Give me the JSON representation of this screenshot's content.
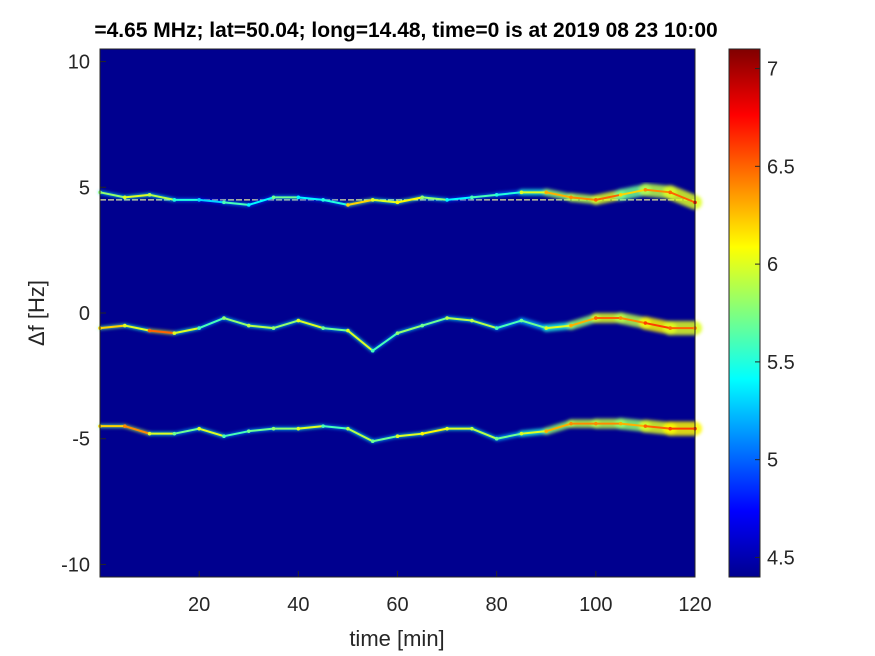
{
  "title": "=4.65 MHz;  lat=50.04; long=14.48, time=0 is at 2019 08 23 10:00",
  "chart_data": {
    "type": "heatmap",
    "title": "=4.65 MHz;  lat=50.04; long=14.48, time=0 is at 2019 08 23 10:00",
    "xlabel": "time [min]",
    "ylabel": "Δf [Hz]",
    "xlim": [
      0,
      120
    ],
    "ylim": [
      -10.5,
      10.5
    ],
    "xticks": [
      20,
      40,
      60,
      80,
      100,
      120
    ],
    "xtick_labels": [
      "20",
      "40",
      "60",
      "80",
      "100",
      "120"
    ],
    "yticks": [
      10,
      5,
      0,
      -5,
      -10
    ],
    "ytick_labels": [
      "10",
      "5",
      "0",
      "-5",
      "-10"
    ],
    "grid": false,
    "colormap": "jet",
    "background_color": "#00008f",
    "colorbar": {
      "range": [
        4.4,
        7.1
      ],
      "ticks": [
        7,
        6.5,
        6,
        5.5,
        5,
        4.5
      ],
      "tick_labels": [
        "7",
        "6.5",
        "6",
        "5.5",
        "5",
        "4.5"
      ]
    },
    "series": [
      {
        "reference_line": 4.5,
        "t": [
          0,
          5,
          10,
          15,
          20,
          25,
          30,
          35,
          40,
          45,
          50,
          55,
          60,
          65,
          70,
          75,
          80,
          85,
          90,
          95,
          100,
          105,
          110,
          115,
          120
        ],
        "df": [
          4.8,
          4.6,
          4.7,
          4.5,
          4.5,
          4.4,
          4.3,
          4.6,
          4.6,
          4.5,
          4.3,
          4.5,
          4.4,
          4.6,
          4.5,
          4.6,
          4.7,
          4.8,
          4.8,
          4.6,
          4.5,
          4.7,
          4.9,
          4.8,
          4.4
        ],
        "intensity": [
          5.8,
          6.0,
          5.9,
          5.5,
          5.3,
          5.6,
          5.4,
          5.7,
          5.4,
          5.5,
          6.2,
          6.0,
          6.1,
          5.8,
          5.4,
          5.6,
          5.5,
          6.0,
          6.3,
          6.4,
          6.5,
          6.2,
          6.4,
          6.5,
          6.7
        ]
      },
      {
        "t": [
          0,
          5,
          10,
          15,
          20,
          25,
          30,
          35,
          40,
          45,
          50,
          55,
          60,
          65,
          70,
          75,
          80,
          85,
          90,
          95,
          100,
          105,
          110,
          115,
          120
        ],
        "df": [
          -0.6,
          -0.5,
          -0.7,
          -0.8,
          -0.6,
          -0.2,
          -0.5,
          -0.6,
          -0.3,
          -0.6,
          -0.7,
          -1.5,
          -0.8,
          -0.5,
          -0.2,
          -0.3,
          -0.6,
          -0.3,
          -0.6,
          -0.5,
          -0.2,
          -0.2,
          -0.4,
          -0.6,
          -0.6
        ],
        "intensity": [
          6.2,
          6.0,
          6.5,
          6.0,
          5.6,
          5.8,
          5.9,
          5.8,
          6.0,
          5.7,
          6.0,
          5.6,
          5.8,
          5.7,
          5.9,
          5.9,
          5.6,
          5.7,
          6.0,
          6.3,
          6.5,
          6.4,
          6.6,
          6.5,
          6.4
        ]
      },
      {
        "t": [
          0,
          5,
          10,
          15,
          20,
          25,
          30,
          35,
          40,
          45,
          50,
          55,
          60,
          65,
          70,
          75,
          80,
          85,
          90,
          95,
          100,
          105,
          110,
          115,
          120
        ],
        "df": [
          -4.5,
          -4.5,
          -4.8,
          -4.8,
          -4.6,
          -4.9,
          -4.7,
          -4.6,
          -4.6,
          -4.5,
          -4.6,
          -5.1,
          -4.9,
          -4.8,
          -4.6,
          -4.6,
          -5.0,
          -4.8,
          -4.7,
          -4.4,
          -4.4,
          -4.4,
          -4.5,
          -4.6,
          -4.6
        ],
        "intensity": [
          6.2,
          6.4,
          6.0,
          5.7,
          6.0,
          5.6,
          5.7,
          5.8,
          6.0,
          5.6,
          5.9,
          5.7,
          6.0,
          6.1,
          6.0,
          5.9,
          5.7,
          6.0,
          6.3,
          6.4,
          6.4,
          6.3,
          6.5,
          6.6,
          6.6
        ]
      }
    ]
  }
}
